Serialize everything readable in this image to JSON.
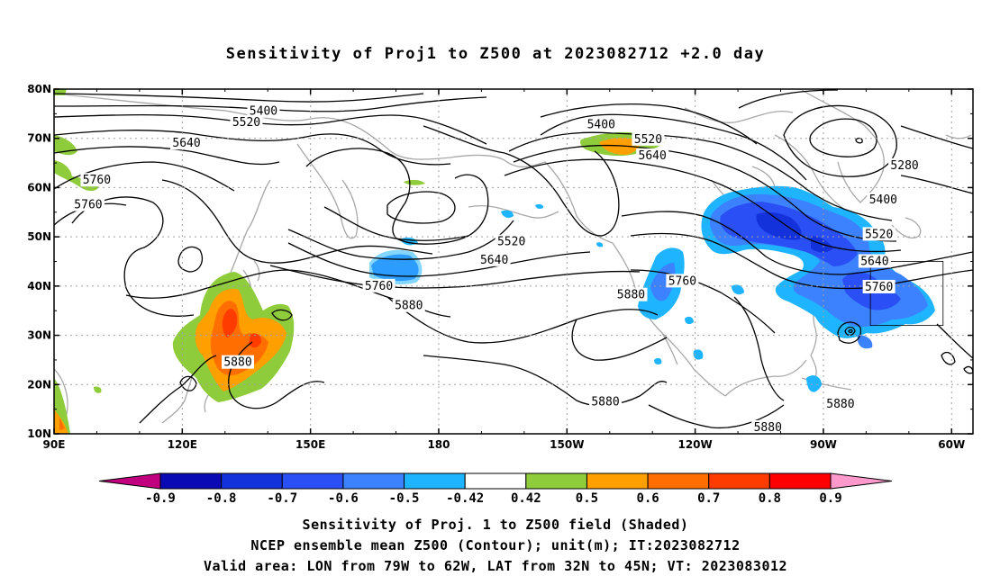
{
  "title": "Sensitivity of Proj1 to Z500 at 2023082712 +2.0 day",
  "axes": {
    "lon_ticks": [
      "90E",
      "120E",
      "150E",
      "180",
      "150W",
      "120W",
      "90W",
      "60W"
    ],
    "lat_ticks": [
      "80N",
      "70N",
      "60N",
      "50N",
      "40N",
      "30N",
      "20N",
      "10N"
    ],
    "lon_range": [
      90,
      305
    ],
    "lat_range": [
      10,
      80
    ],
    "grid": "dotted"
  },
  "contour_labels": [
    {
      "text": "5400",
      "lon": 139,
      "lat": 75.5
    },
    {
      "text": "5520",
      "lon": 135,
      "lat": 73.2
    },
    {
      "text": "5640",
      "lon": 121,
      "lat": 69.0
    },
    {
      "text": "5760",
      "lon": 100,
      "lat": 61.5
    },
    {
      "text": "5760",
      "lon": 98,
      "lat": 56.5
    },
    {
      "text": "5400",
      "lon": 218,
      "lat": 72.8
    },
    {
      "text": "5520",
      "lon": 229,
      "lat": 69.8
    },
    {
      "text": "5640",
      "lon": 230,
      "lat": 66.5
    },
    {
      "text": "5280",
      "lon": 289,
      "lat": 64.5
    },
    {
      "text": "5400",
      "lon": 284,
      "lat": 57.5
    },
    {
      "text": "5520",
      "lon": 283,
      "lat": 50.5
    },
    {
      "text": "5640",
      "lon": 282,
      "lat": 45.0
    },
    {
      "text": "5760",
      "lon": 283,
      "lat": 39.8
    },
    {
      "text": "5520",
      "lon": 197,
      "lat": 49.0
    },
    {
      "text": "5640",
      "lon": 193,
      "lat": 45.3
    },
    {
      "text": "5760",
      "lon": 166,
      "lat": 40.0
    },
    {
      "text": "5880",
      "lon": 173,
      "lat": 36.0
    },
    {
      "text": "5760",
      "lon": 237,
      "lat": 41.0
    },
    {
      "text": "5880",
      "lon": 225,
      "lat": 38.2
    },
    {
      "text": "5880",
      "lon": 133,
      "lat": 24.5
    },
    {
      "text": "5880",
      "lon": 219,
      "lat": 16.5
    },
    {
      "text": "5880",
      "lon": 274,
      "lat": 16.0
    },
    {
      "text": "5880",
      "lon": 257,
      "lat": 11.3
    }
  ],
  "colorbar": {
    "colors": [
      "#c0007f",
      "#0a0ab4",
      "#1432dc",
      "#2a50f5",
      "#3c82ff",
      "#1fb4ff",
      "#ffffff",
      "#8fcc3c",
      "#ffa000",
      "#ff6e00",
      "#ff3c00",
      "#ff0000",
      "#ff99cc"
    ],
    "labels": [
      "-0.9",
      "-0.8",
      "-0.7",
      "-0.6",
      "-0.5",
      "-0.42",
      "0.42",
      "0.5",
      "0.6",
      "0.7",
      "0.8",
      "0.9"
    ]
  },
  "captions": {
    "line1": "Sensitivity of Proj. 1 to Z500 field (Shaded)",
    "line2": "NCEP ensemble mean Z500 (Contour); unit(m); IT:2023082712",
    "line3": "Valid area: LON from 79W to 62W, LAT from 32N to 45N; VT: 2023083012"
  },
  "valid_area": {
    "lon": [
      -79,
      -62
    ],
    "lat": [
      32,
      45
    ]
  },
  "colors": {
    "land_outline": "#a8a8a8",
    "contour": "#000000",
    "grid": "#a0a0a0"
  }
}
